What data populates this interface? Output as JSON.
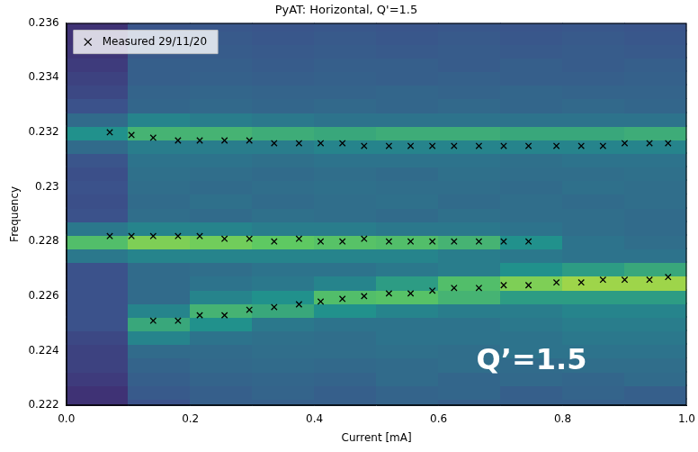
{
  "chart_data": {
    "type": "scatter",
    "title": "PyAT: Horizontal, Q'=1.5",
    "x_label": "Current [mA]",
    "y_label": "Frequency",
    "xlim": [
      0,
      1
    ],
    "xticks": [
      {
        "value": 0,
        "label": "0.0"
      },
      {
        "value": 0.2,
        "label": "0.2"
      },
      {
        "value": 0.4,
        "label": "0.4"
      },
      {
        "value": 0.6,
        "label": "0.6"
      },
      {
        "value": 0.8,
        "label": "0.8"
      },
      {
        "value": 1,
        "label": "1.0"
      }
    ],
    "ylim": [
      0.222,
      0.236
    ],
    "yticks": [
      0.222,
      0.224,
      0.226,
      0.228,
      0.23,
      0.232,
      0.234,
      0.236
    ],
    "grid": false,
    "legend": "upper left",
    "series": [
      {
        "name": "Measured 29/11/20",
        "color": "#000000",
        "marker": "x",
        "x": [
          0.07,
          0.105,
          0.14,
          0.18,
          0.215,
          0.255,
          0.295,
          0.335,
          0.375,
          0.41,
          0.445,
          0.48,
          0.52,
          0.555,
          0.59,
          0.625,
          0.665,
          0.705,
          0.745,
          0.79,
          0.83,
          0.865,
          0.9,
          0.94,
          0.97,
          0.07,
          0.105,
          0.14,
          0.18,
          0.215,
          0.255,
          0.295,
          0.335,
          0.375,
          0.41,
          0.445,
          0.48,
          0.52,
          0.555,
          0.59,
          0.625,
          0.665,
          0.705,
          0.745,
          0.14,
          0.18,
          0.215,
          0.255,
          0.295,
          0.335,
          0.375,
          0.41,
          0.445,
          0.48,
          0.52,
          0.555,
          0.59,
          0.625,
          0.665,
          0.705,
          0.745,
          0.79,
          0.83,
          0.865,
          0.9,
          0.94,
          0.97
        ],
        "values": [
          0.232,
          0.2319,
          0.2318,
          0.2317,
          0.2317,
          0.2317,
          0.2317,
          0.2316,
          0.2316,
          0.2316,
          0.2316,
          0.2315,
          0.2315,
          0.2315,
          0.2315,
          0.2315,
          0.2315,
          0.2315,
          0.2315,
          0.2315,
          0.2315,
          0.2315,
          0.2316,
          0.2316,
          0.2316,
          0.2282,
          0.2282,
          0.2282,
          0.2282,
          0.2282,
          0.2281,
          0.2281,
          0.228,
          0.2281,
          0.228,
          0.228,
          0.2281,
          0.228,
          0.228,
          0.228,
          0.228,
          0.228,
          0.228,
          0.228,
          0.2251,
          0.2251,
          0.2253,
          0.2253,
          0.2255,
          0.2256,
          0.2257,
          0.2258,
          0.2259,
          0.226,
          0.2261,
          0.2261,
          0.2262,
          0.2263,
          0.2263,
          0.2264,
          0.2264,
          0.2265,
          0.2265,
          0.2266,
          0.2266,
          0.2266,
          0.2267
        ]
      }
    ],
    "heatmap": {
      "x_edges": [
        0,
        0.1,
        0.2,
        0.3,
        0.4,
        0.5,
        0.6,
        0.7,
        0.8,
        0.9,
        1
      ],
      "y_edges": [
        0.22175,
        0.22225,
        0.22275,
        0.22325,
        0.22375,
        0.22425,
        0.22475,
        0.22525,
        0.22575,
        0.22625,
        0.22675,
        0.22725,
        0.22775,
        0.22825,
        0.22875,
        0.22925,
        0.22975,
        0.23025,
        0.23075,
        0.23125,
        0.23175,
        0.23225,
        0.23275,
        0.23325,
        0.23375,
        0.23425,
        0.23475,
        0.23525,
        0.23575,
        0.23625
      ],
      "z": [
        [
          0.15,
          0.25,
          0.3,
          0.3,
          0.3,
          0.32,
          0.3,
          0.3,
          0.3,
          0.3
        ],
        [
          0.15,
          0.28,
          0.3,
          0.32,
          0.3,
          0.32,
          0.33,
          0.3,
          0.32,
          0.3
        ],
        [
          0.18,
          0.3,
          0.32,
          0.33,
          0.32,
          0.35,
          0.33,
          0.34,
          0.33,
          0.35
        ],
        [
          0.2,
          0.32,
          0.34,
          0.35,
          0.34,
          0.35,
          0.36,
          0.35,
          0.36,
          0.36
        ],
        [
          0.2,
          0.35,
          0.35,
          0.36,
          0.36,
          0.37,
          0.36,
          0.38,
          0.38,
          0.38
        ],
        [
          0.22,
          0.45,
          0.38,
          0.37,
          0.36,
          0.38,
          0.38,
          0.38,
          0.4,
          0.4
        ],
        [
          0.25,
          0.6,
          0.5,
          0.4,
          0.38,
          0.38,
          0.38,
          0.4,
          0.42,
          0.42
        ],
        [
          0.25,
          0.45,
          0.65,
          0.6,
          0.5,
          0.45,
          0.42,
          0.42,
          0.45,
          0.45
        ],
        [
          0.25,
          0.35,
          0.45,
          0.5,
          0.7,
          0.72,
          0.65,
          0.55,
          0.55,
          0.55
        ],
        [
          0.25,
          0.35,
          0.38,
          0.4,
          0.45,
          0.55,
          0.7,
          0.8,
          0.85,
          0.85
        ],
        [
          0.25,
          0.35,
          0.36,
          0.38,
          0.38,
          0.4,
          0.42,
          0.5,
          0.55,
          0.6
        ],
        [
          0.4,
          0.45,
          0.45,
          0.45,
          0.45,
          0.45,
          0.42,
          0.4,
          0.38,
          0.38
        ],
        [
          0.7,
          0.8,
          0.78,
          0.75,
          0.72,
          0.7,
          0.65,
          0.5,
          0.38,
          0.36
        ],
        [
          0.4,
          0.45,
          0.45,
          0.42,
          0.42,
          0.4,
          0.4,
          0.38,
          0.36,
          0.35
        ],
        [
          0.25,
          0.36,
          0.35,
          0.37,
          0.36,
          0.35,
          0.37,
          0.36,
          0.36,
          0.35
        ],
        [
          0.24,
          0.35,
          0.37,
          0.35,
          0.36,
          0.37,
          0.35,
          0.36,
          0.35,
          0.36
        ],
        [
          0.25,
          0.36,
          0.35,
          0.36,
          0.37,
          0.36,
          0.36,
          0.35,
          0.37,
          0.36
        ],
        [
          0.24,
          0.37,
          0.36,
          0.35,
          0.36,
          0.35,
          0.37,
          0.36,
          0.36,
          0.37
        ],
        [
          0.26,
          0.38,
          0.38,
          0.37,
          0.38,
          0.38,
          0.38,
          0.37,
          0.38,
          0.38
        ],
        [
          0.35,
          0.42,
          0.42,
          0.42,
          0.45,
          0.45,
          0.45,
          0.45,
          0.45,
          0.45
        ],
        [
          0.5,
          0.65,
          0.65,
          0.62,
          0.6,
          0.62,
          0.62,
          0.6,
          0.6,
          0.62
        ],
        [
          0.35,
          0.45,
          0.42,
          0.4,
          0.38,
          0.38,
          0.38,
          0.38,
          0.38,
          0.38
        ],
        [
          0.25,
          0.33,
          0.34,
          0.33,
          0.34,
          0.33,
          0.34,
          0.33,
          0.34,
          0.33
        ],
        [
          0.22,
          0.32,
          0.33,
          0.32,
          0.32,
          0.33,
          0.32,
          0.33,
          0.32,
          0.32
        ],
        [
          0.2,
          0.3,
          0.31,
          0.3,
          0.31,
          0.3,
          0.31,
          0.3,
          0.3,
          0.31
        ],
        [
          0.18,
          0.3,
          0.3,
          0.29,
          0.3,
          0.3,
          0.29,
          0.3,
          0.29,
          0.3
        ],
        [
          0.16,
          0.28,
          0.29,
          0.28,
          0.29,
          0.28,
          0.29,
          0.28,
          0.29,
          0.28
        ],
        [
          0.15,
          0.27,
          0.28,
          0.27,
          0.28,
          0.27,
          0.28,
          0.27,
          0.28,
          0.27
        ],
        [
          0.15,
          0.26,
          0.27,
          0.26,
          0.27,
          0.26,
          0.27,
          0.26,
          0.27,
          0.26
        ]
      ]
    },
    "annotations": [
      {
        "text": "Q’=1.5",
        "x": 0.75,
        "y": 0.2236
      }
    ]
  }
}
